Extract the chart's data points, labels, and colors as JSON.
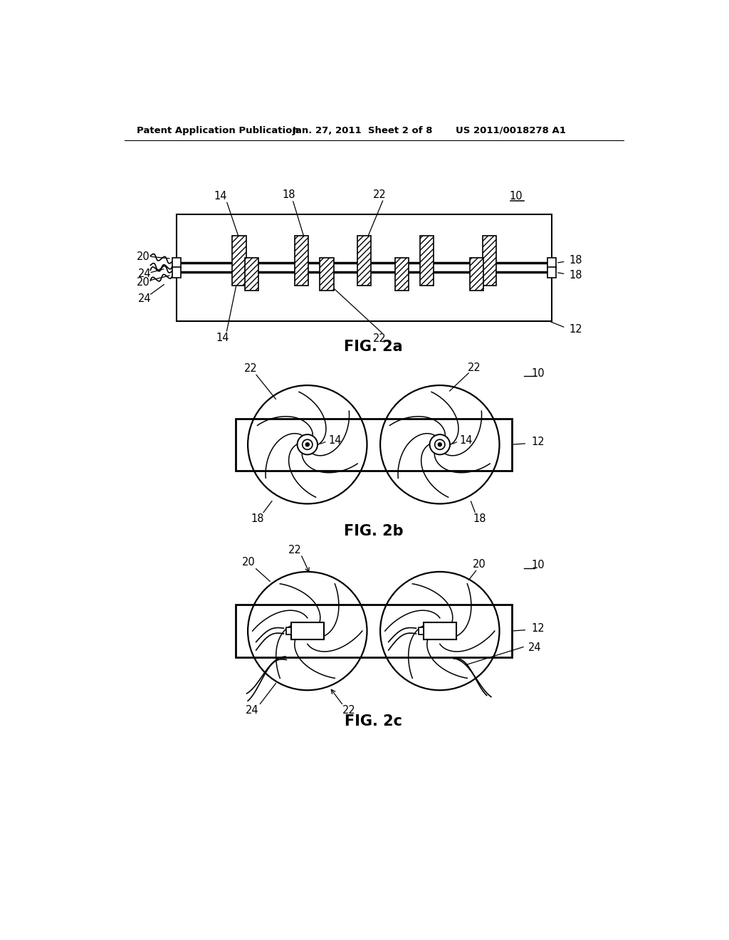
{
  "bg_color": "#ffffff",
  "header_left": "Patent Application Publication",
  "header_center": "Jan. 27, 2011  Sheet 2 of 8",
  "header_right": "US 2011/0018278 A1",
  "fig2a_label": "FIG. 2a",
  "fig2b_label": "FIG. 2b",
  "fig2c_label": "FIG. 2c",
  "line_color": "#000000",
  "label_fontsize": 10.5,
  "fig_label_fontsize": 15
}
